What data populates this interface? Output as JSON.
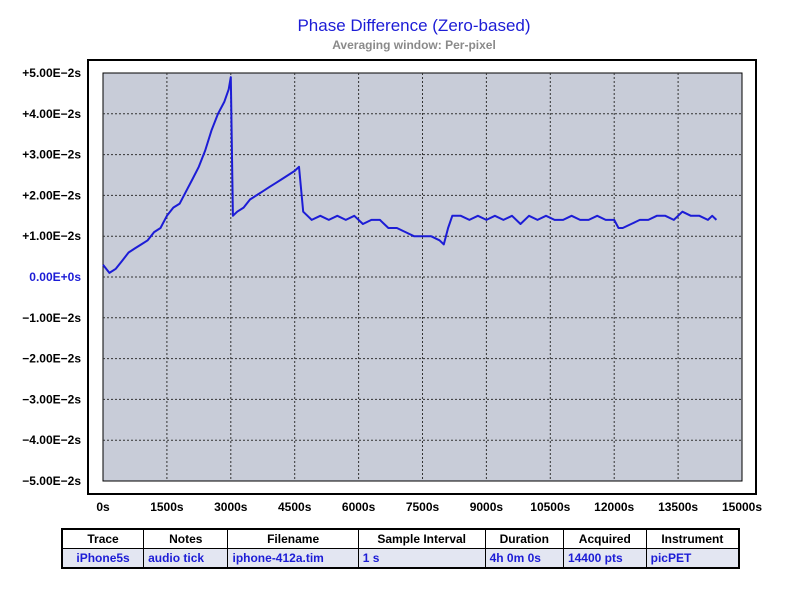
{
  "chart_data": {
    "type": "line",
    "title": "Phase Difference (Zero-based)",
    "subtitle": "Averaging window: Per-pixel",
    "xlabel": "",
    "ylabel": "",
    "xlim": [
      0,
      15000
    ],
    "ylim": [
      -0.05,
      0.05
    ],
    "x_ticks": [
      "0s",
      "1500s",
      "3000s",
      "4500s",
      "6000s",
      "7500s",
      "9000s",
      "10500s",
      "12000s",
      "13500s",
      "15000s"
    ],
    "y_ticks": [
      "+5.00E−2s",
      "+4.00E−2s",
      "+3.00E−2s",
      "+2.00E−2s",
      "+1.00E−2s",
      "0.00E+0s",
      "−1.00E−2s",
      "−2.00E−2s",
      "−3.00E−2s",
      "−4.00E−2s",
      "−5.00E−2s"
    ],
    "grid": true,
    "colors": {
      "line": "#1c1cd6",
      "plot_bg": "#c8ccd8",
      "zero_label": "#1c1cd6"
    },
    "series": [
      {
        "name": "iPhone5s",
        "x": [
          0,
          150,
          300,
          450,
          600,
          750,
          900,
          1050,
          1200,
          1350,
          1500,
          1650,
          1800,
          1950,
          2100,
          2250,
          2400,
          2550,
          2700,
          2850,
          2950,
          3000,
          3050,
          3150,
          3300,
          3450,
          3600,
          3750,
          3900,
          4050,
          4200,
          4350,
          4500,
          4600,
          4700,
          4800,
          4900,
          5100,
          5300,
          5500,
          5700,
          5900,
          6100,
          6300,
          6500,
          6700,
          6900,
          7100,
          7300,
          7500,
          7700,
          7900,
          8000,
          8100,
          8200,
          8400,
          8600,
          8800,
          9000,
          9200,
          9400,
          9600,
          9800,
          10000,
          10200,
          10400,
          10600,
          10800,
          11000,
          11200,
          11400,
          11600,
          11800,
          12000,
          12100,
          12200,
          12400,
          12600,
          12800,
          13000,
          13200,
          13400,
          13600,
          13800,
          14000,
          14200,
          14300,
          14400
        ],
        "y": [
          0.003,
          0.001,
          0.002,
          0.004,
          0.006,
          0.007,
          0.008,
          0.009,
          0.011,
          0.012,
          0.015,
          0.017,
          0.018,
          0.021,
          0.024,
          0.027,
          0.031,
          0.036,
          0.04,
          0.043,
          0.046,
          0.049,
          0.015,
          0.016,
          0.017,
          0.019,
          0.02,
          0.021,
          0.022,
          0.023,
          0.024,
          0.025,
          0.026,
          0.027,
          0.016,
          0.015,
          0.014,
          0.015,
          0.014,
          0.015,
          0.014,
          0.015,
          0.013,
          0.014,
          0.014,
          0.012,
          0.012,
          0.011,
          0.01,
          0.01,
          0.01,
          0.009,
          0.008,
          0.012,
          0.015,
          0.015,
          0.014,
          0.015,
          0.014,
          0.015,
          0.014,
          0.015,
          0.013,
          0.015,
          0.014,
          0.015,
          0.014,
          0.014,
          0.015,
          0.014,
          0.014,
          0.015,
          0.014,
          0.014,
          0.012,
          0.012,
          0.013,
          0.014,
          0.014,
          0.015,
          0.015,
          0.014,
          0.016,
          0.015,
          0.015,
          0.014,
          0.015,
          0.014
        ]
      }
    ]
  },
  "table": {
    "headers": [
      "Trace",
      "Notes",
      "Filename",
      "Sample Interval",
      "Duration",
      "Acquired",
      "Instrument"
    ],
    "row": [
      "iPhone5s",
      "audio tick",
      "iphone-412a.tim",
      "1 s",
      "4h 0m 0s",
      "14400 pts",
      "picPET"
    ]
  }
}
